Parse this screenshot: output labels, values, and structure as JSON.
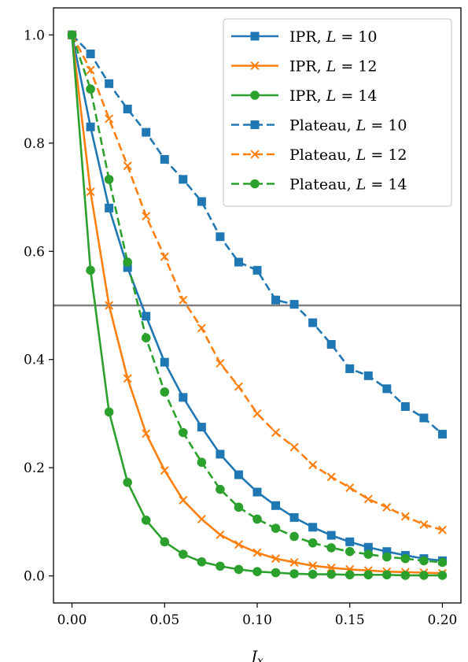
{
  "chart_data": {
    "type": "line",
    "xlabel": "J_x",
    "ylabel": "",
    "xlim": [
      -0.01,
      0.21
    ],
    "ylim": [
      -0.05,
      1.05
    ],
    "x_ticks": [
      "0.00",
      "0.05",
      "0.10",
      "0.15",
      "0.20"
    ],
    "x_tick_values": [
      0.0,
      0.05,
      0.1,
      0.15,
      0.2
    ],
    "y_ticks": [
      "0.0",
      "0.2",
      "0.4",
      "0.6",
      "0.8",
      "1.0"
    ],
    "y_tick_values": [
      0.0,
      0.2,
      0.4,
      0.6,
      0.8,
      1.0
    ],
    "grid": false,
    "legend_position": "top-right",
    "reference_line": {
      "y": 0.5,
      "color": "#808080"
    },
    "x": [
      0.0,
      0.01,
      0.02,
      0.03,
      0.04,
      0.05,
      0.06,
      0.07,
      0.08,
      0.09,
      0.1,
      0.11,
      0.12,
      0.13,
      0.14,
      0.15,
      0.16,
      0.17,
      0.18,
      0.19,
      0.2
    ],
    "series": [
      {
        "name": "IPR, L = 10",
        "color": "#1f77b4",
        "dash": "solid",
        "marker": "square",
        "values": [
          1.0,
          0.83,
          0.68,
          0.57,
          0.48,
          0.395,
          0.33,
          0.275,
          0.225,
          0.187,
          0.155,
          0.13,
          0.108,
          0.09,
          0.075,
          0.063,
          0.053,
          0.045,
          0.038,
          0.032,
          0.028
        ]
      },
      {
        "name": "IPR, L = 12",
        "color": "#ff7f0e",
        "dash": "solid",
        "marker": "x",
        "values": [
          1.0,
          0.71,
          0.5,
          0.365,
          0.263,
          0.195,
          0.14,
          0.105,
          0.076,
          0.058,
          0.043,
          0.032,
          0.025,
          0.019,
          0.015,
          0.012,
          0.01,
          0.008,
          0.007,
          0.006,
          0.005
        ]
      },
      {
        "name": "IPR, L = 14",
        "color": "#2ca02c",
        "dash": "solid",
        "marker": "circle",
        "values": [
          1.0,
          0.565,
          0.303,
          0.173,
          0.103,
          0.063,
          0.04,
          0.026,
          0.018,
          0.012,
          0.008,
          0.006,
          0.004,
          0.003,
          0.003,
          0.002,
          0.002,
          0.002,
          0.001,
          0.001,
          0.001
        ]
      },
      {
        "name": "Plateau, L = 10",
        "color": "#1f77b4",
        "dash": "dashed",
        "marker": "square",
        "values": [
          1.0,
          0.965,
          0.91,
          0.863,
          0.82,
          0.77,
          0.733,
          0.692,
          0.627,
          0.58,
          0.565,
          0.51,
          0.502,
          0.468,
          0.428,
          0.383,
          0.37,
          0.346,
          0.313,
          0.292,
          0.262
        ]
      },
      {
        "name": "Plateau, L = 12",
        "color": "#ff7f0e",
        "dash": "dashed",
        "marker": "x",
        "values": [
          1.0,
          0.935,
          0.845,
          0.758,
          0.665,
          0.59,
          0.51,
          0.458,
          0.393,
          0.35,
          0.3,
          0.265,
          0.238,
          0.205,
          0.183,
          0.163,
          0.142,
          0.127,
          0.11,
          0.095,
          0.085
        ]
      },
      {
        "name": "Plateau, L = 14",
        "color": "#2ca02c",
        "dash": "dashed",
        "marker": "circle",
        "values": [
          1.0,
          0.9,
          0.733,
          0.58,
          0.44,
          0.34,
          0.265,
          0.21,
          0.16,
          0.127,
          0.105,
          0.088,
          0.073,
          0.061,
          0.052,
          0.045,
          0.04,
          0.035,
          0.032,
          0.028,
          0.025
        ]
      }
    ]
  }
}
